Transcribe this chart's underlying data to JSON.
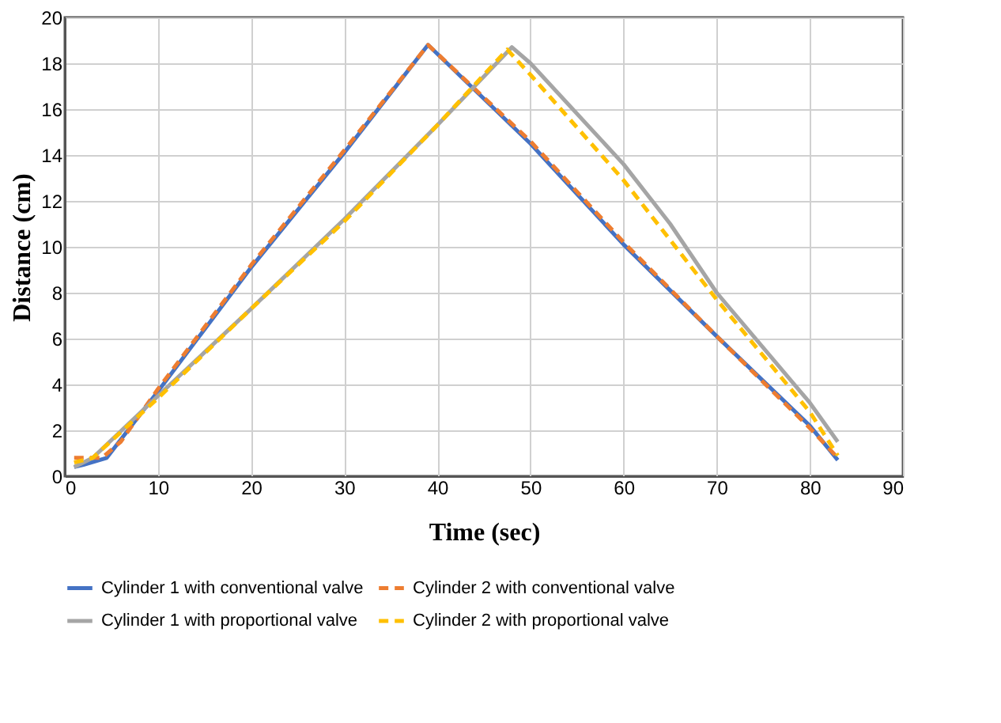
{
  "chart_data": {
    "type": "line",
    "xlabel": "Time (sec)",
    "ylabel": "Distance (cm)",
    "xlim": [
      0,
      90
    ],
    "xticks": [
      0,
      10,
      20,
      30,
      40,
      50,
      60,
      70,
      80,
      90
    ],
    "ylim": [
      0,
      20
    ],
    "yticks": [
      0,
      2,
      4,
      6,
      8,
      10,
      12,
      14,
      16,
      18,
      20
    ],
    "grid": true,
    "legend": "bottom",
    "series": [
      {
        "name": "Cylinder 1 with conventional valve",
        "color": "#4472c4",
        "line_style": "solid",
        "x": [
          1,
          2,
          4.5,
          10,
          20,
          30,
          39,
          50,
          60,
          70,
          80,
          83
        ],
        "values": [
          0.4,
          0.5,
          0.8,
          3.7,
          9.1,
          14.1,
          18.8,
          14.5,
          10.1,
          6.1,
          2.2,
          0.7
        ]
      },
      {
        "name": "Cylinder 2 with conventional valve",
        "color": "#ed7d31",
        "line_style": "dashed",
        "x": [
          1,
          4,
          6,
          10,
          20,
          30,
          39,
          50,
          60,
          70,
          80,
          83
        ],
        "values": [
          0.8,
          0.8,
          1.5,
          3.8,
          9.2,
          14.2,
          18.8,
          14.6,
          10.2,
          6.1,
          2.1,
          0.8
        ]
      },
      {
        "name": "Cylinder 1 with proportional valve",
        "color": "#a5a5a5",
        "line_style": "solid",
        "x": [
          1,
          3,
          10,
          20,
          30,
          40,
          48,
          50,
          60,
          65,
          70,
          80,
          83
        ],
        "values": [
          0.4,
          0.8,
          3.5,
          7.3,
          11.2,
          15.3,
          18.7,
          18.0,
          13.6,
          11.0,
          8.0,
          3.2,
          1.5
        ]
      },
      {
        "name": "Cylinder 2 with proportional valve",
        "color": "#ffc000",
        "line_style": "dashed",
        "x": [
          1,
          3,
          10,
          20,
          30,
          40,
          47.5,
          50,
          60,
          70,
          80,
          83
        ],
        "values": [
          0.6,
          0.8,
          3.4,
          7.3,
          11.1,
          15.3,
          18.6,
          17.5,
          12.9,
          7.7,
          2.8,
          0.9
        ]
      }
    ]
  }
}
